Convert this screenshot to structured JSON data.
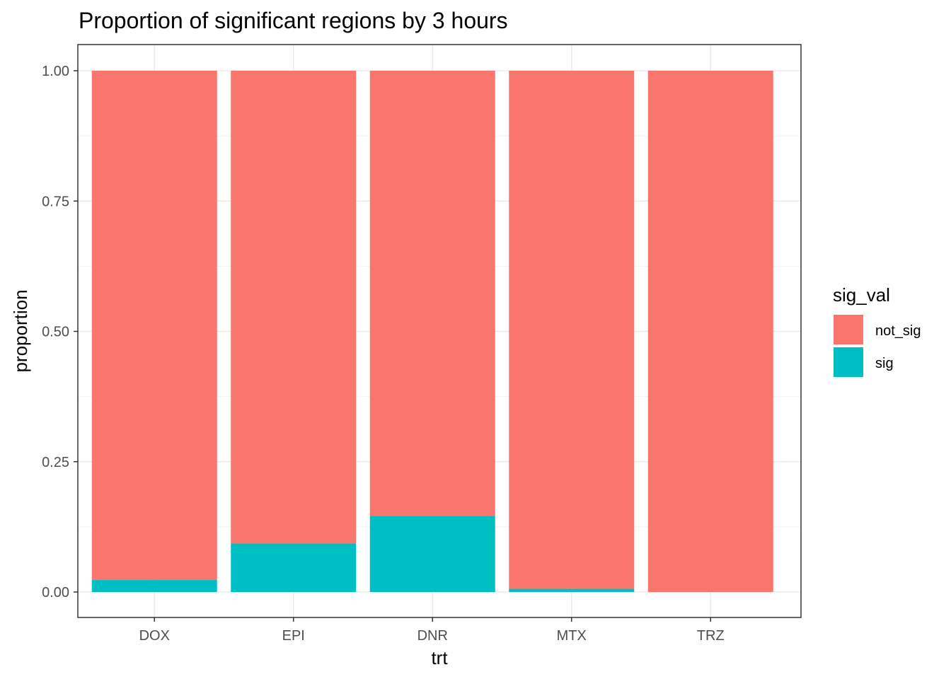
{
  "chart_data": {
    "type": "bar",
    "stacked": true,
    "title": "Proportion of significant regions by 3 hours",
    "xlabel": "trt",
    "ylabel": "proportion",
    "categories": [
      "DOX",
      "EPI",
      "DNR",
      "MTX",
      "TRZ"
    ],
    "ylim": [
      0,
      1
    ],
    "yticks": [
      0,
      0.25,
      0.5,
      0.75,
      1
    ],
    "ytick_labels": [
      "0.00",
      "0.25",
      "0.50",
      "0.75",
      "1.00"
    ],
    "grid": true,
    "legend_position": "right",
    "legend_title": "sig_val",
    "series": [
      {
        "name": "sig",
        "color": "#00BFC4",
        "values": [
          0.023,
          0.093,
          0.146,
          0.006,
          0.0
        ]
      },
      {
        "name": "not_sig",
        "color": "#F8766D",
        "values": [
          0.977,
          0.907,
          0.854,
          0.994,
          1.0
        ]
      }
    ],
    "legend": [
      {
        "label": "not_sig",
        "color": "#F8766D"
      },
      {
        "label": "sig",
        "color": "#00BFC4"
      }
    ]
  }
}
